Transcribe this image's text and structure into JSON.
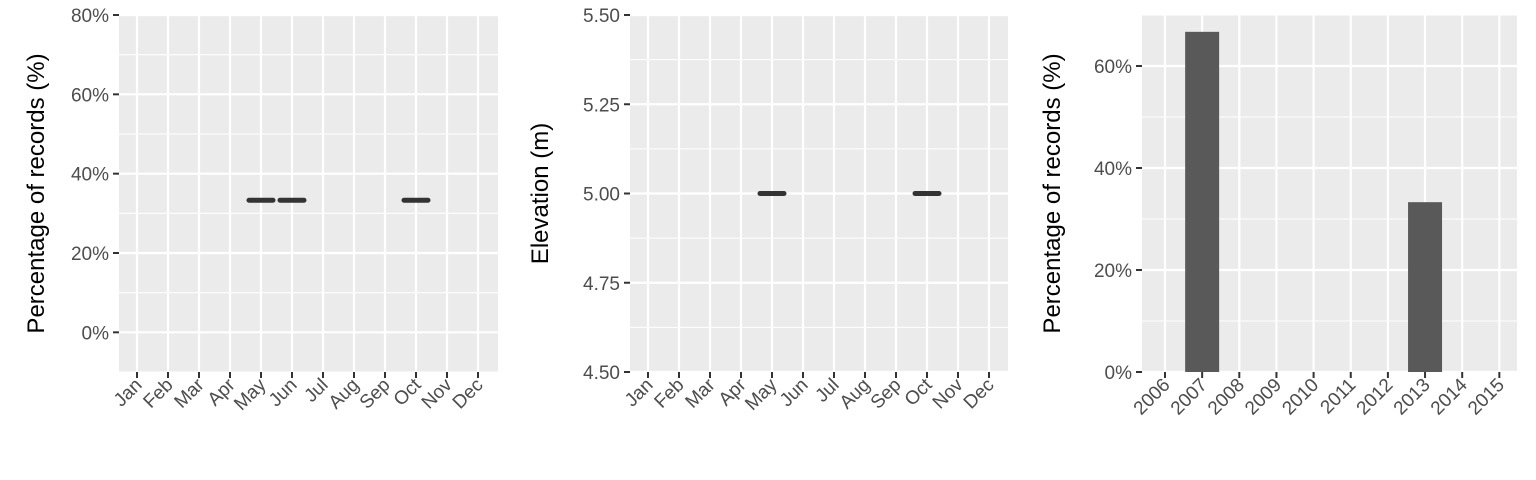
{
  "colors": {
    "panel": "#ebebeb",
    "grid": "#ffffff",
    "mark": "#595959",
    "tick": "#333333",
    "text": "#4d4d4d"
  },
  "chart_data": [
    {
      "type": "line",
      "xlabel": "",
      "ylabel": "Percentage of records (%)",
      "categories": [
        "Jan",
        "Feb",
        "Mar",
        "Apr",
        "May",
        "Jun",
        "Jul",
        "Aug",
        "Sep",
        "Oct",
        "Nov",
        "Dec"
      ],
      "y_ticks": [
        "0%",
        "20%",
        "40%",
        "60%",
        "80%"
      ],
      "ylim": [
        -10,
        80
      ],
      "grid": true,
      "series": [
        {
          "values": [
            null,
            null,
            null,
            null,
            33.3,
            33.3,
            null,
            null,
            null,
            33.3,
            null,
            null
          ]
        }
      ]
    },
    {
      "type": "line",
      "xlabel": "",
      "ylabel": "Elevation (m)",
      "categories": [
        "Jan",
        "Feb",
        "Mar",
        "Apr",
        "May",
        "Jun",
        "Jul",
        "Aug",
        "Sep",
        "Oct",
        "Nov",
        "Dec"
      ],
      "y_ticks": [
        "4.50",
        "4.75",
        "5.00",
        "5.25",
        "5.50"
      ],
      "ylim": [
        4.5,
        5.5
      ],
      "grid": true,
      "series": [
        {
          "values": [
            null,
            null,
            null,
            null,
            5.0,
            null,
            null,
            null,
            null,
            5.0,
            null,
            null
          ]
        }
      ]
    },
    {
      "type": "bar",
      "xlabel": "",
      "ylabel": "Percentage of records (%)",
      "categories": [
        "2006",
        "2007",
        "2008",
        "2009",
        "2010",
        "2011",
        "2012",
        "2013",
        "2014",
        "2015"
      ],
      "y_ticks": [
        "0%",
        "20%",
        "40%",
        "60%"
      ],
      "ylim": [
        0,
        70
      ],
      "grid": true,
      "values": [
        null,
        66.7,
        null,
        null,
        null,
        null,
        null,
        33.3,
        null,
        null
      ]
    }
  ]
}
